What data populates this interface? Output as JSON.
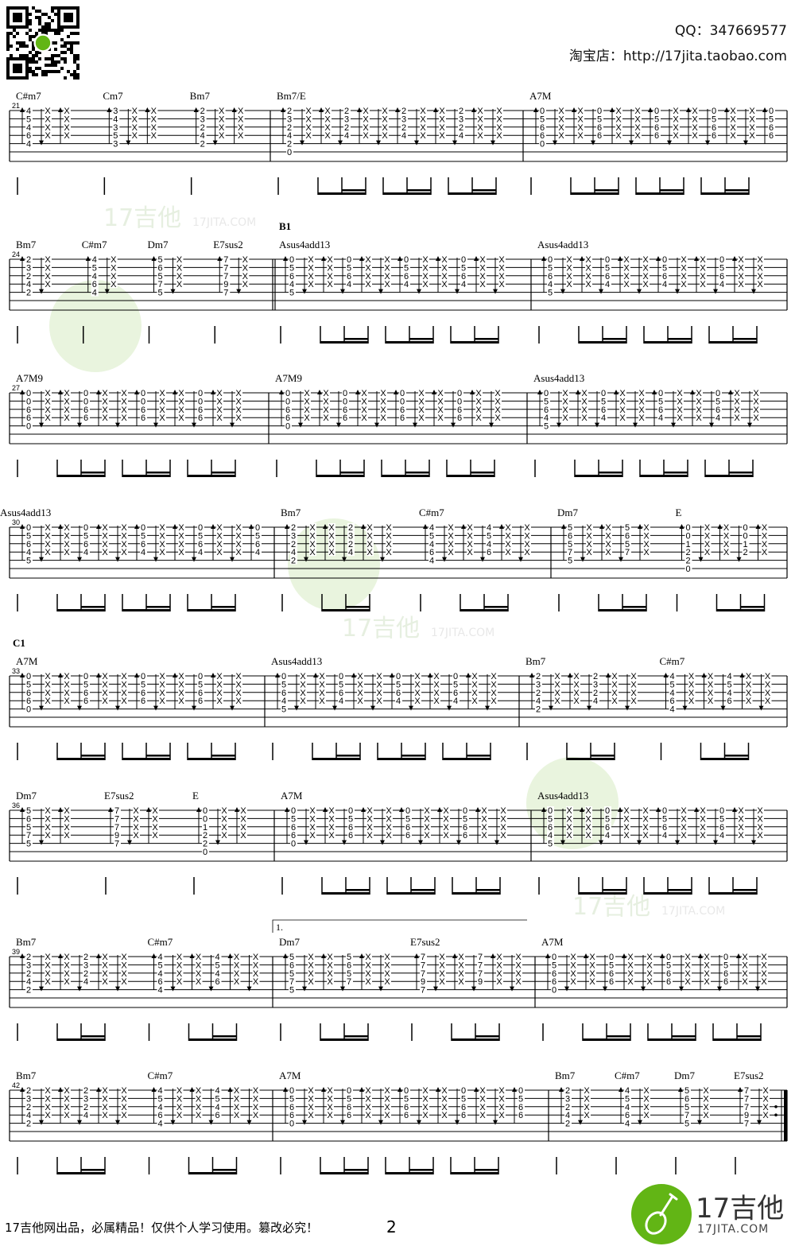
{
  "header": {
    "qq": "QQ：347669577",
    "shop": "淘宝店：http://17jita.taobao.com"
  },
  "watermark": {
    "text": "17吉他",
    "sub": "17JITA.COM"
  },
  "shapes": {
    "C#m7": [
      "4",
      "5",
      "4",
      "6",
      "4",
      ""
    ],
    "Cm7": [
      "3",
      "4",
      "3",
      "5",
      "3",
      ""
    ],
    "Bm7": [
      "2",
      "3",
      "2",
      "4",
      "2",
      ""
    ],
    "Bm7/E": [
      "2",
      "3",
      "2",
      "4",
      "2",
      "0"
    ],
    "A7M": [
      "0",
      "5",
      "6",
      "6",
      "0",
      ""
    ],
    "A7M9": [
      "0",
      "0",
      "6",
      "6",
      "0",
      ""
    ],
    "Asus4add13": [
      "0",
      "5",
      "6",
      "4",
      "5",
      ""
    ],
    "Dm7": [
      "5",
      "6",
      "5",
      "7",
      "5",
      ""
    ],
    "E7sus2": [
      "7",
      "7",
      "7",
      "9",
      "7",
      ""
    ],
    "E": [
      "0",
      "0",
      "1",
      "2",
      "2",
      "0"
    ]
  },
  "systems": [
    {
      "measures": [
        {
          "number": "21",
          "chords": [
            "C#m7",
            "Cm7",
            "Bm7"
          ]
        },
        {
          "chords": [
            "Bm7/E"
          ]
        },
        {
          "chords": [
            "A7M"
          ]
        }
      ]
    },
    {
      "measures": [
        {
          "number": "24",
          "chords": [
            "Bm7",
            "C#m7",
            "Dm7",
            "E7sus2"
          ]
        },
        {
          "section": "B1",
          "chords": [
            "Asus4add13"
          ]
        },
        {
          "chords": [
            "Asus4add13"
          ]
        }
      ]
    },
    {
      "measures": [
        {
          "number": "27",
          "chords": [
            "A7M9"
          ]
        },
        {
          "chords": [
            "A7M9"
          ]
        },
        {
          "chords": [
            "Asus4add13"
          ]
        }
      ]
    },
    {
      "measures": [
        {
          "number": "30",
          "chords": [
            "Asus4add13"
          ]
        },
        {
          "chords": [
            "Bm7",
            "C#m7"
          ]
        },
        {
          "chords": [
            "Dm7",
            "E"
          ]
        }
      ]
    },
    {
      "measures": [
        {
          "number": "33",
          "section": "C1",
          "chords": [
            "A7M"
          ]
        },
        {
          "chords": [
            "Asus4add13"
          ]
        },
        {
          "chords": [
            "Bm7",
            "C#m7"
          ]
        }
      ]
    },
    {
      "measures": [
        {
          "number": "36",
          "chords": [
            "Dm7",
            "E7sus2",
            "E"
          ]
        },
        {
          "chords": [
            "A7M"
          ]
        },
        {
          "chords": [
            "Asus4add13"
          ]
        }
      ]
    },
    {
      "measures": [
        {
          "number": "39",
          "chords": [
            "Bm7",
            "C#m7"
          ]
        },
        {
          "volta": "1.",
          "chords": [
            "Dm7",
            "E7sus2"
          ]
        },
        {
          "chords": [
            "A7M"
          ]
        }
      ]
    },
    {
      "measures": [
        {
          "number": "42",
          "chords": [
            "Bm7",
            "C#m7"
          ]
        },
        {
          "chords": [
            "A7M"
          ]
        },
        {
          "chords": [
            "Bm7",
            "C#m7",
            "Dm7",
            "E7sus2"
          ]
        }
      ]
    }
  ],
  "mute_symbol": "X",
  "footer": {
    "notice": "17吉他网出品，必属精品！仅供个人学习使用。篡改必究！",
    "page": "2",
    "logo_text": "17吉他",
    "logo_sub": "17JITA.COM"
  },
  "colors": {
    "brand_green": "#62b515",
    "watermark_green": "#e6f2da"
  }
}
